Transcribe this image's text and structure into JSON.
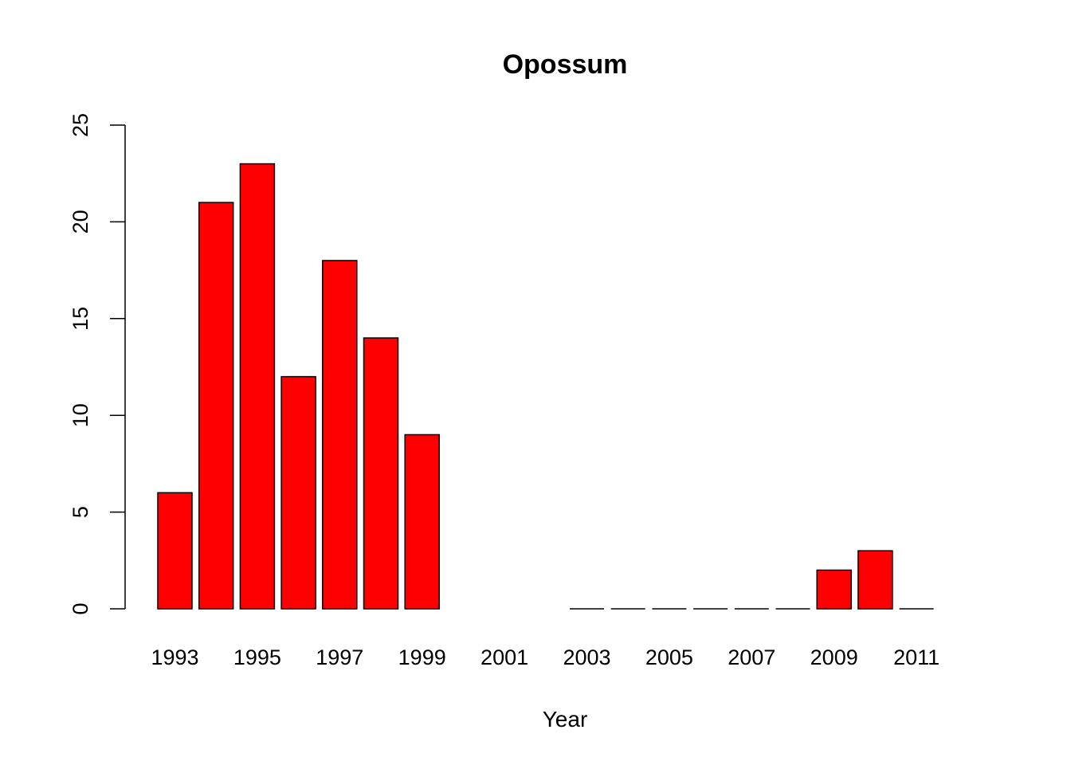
{
  "chart_data": {
    "type": "bar",
    "title": "Opossum",
    "xlabel": "Year",
    "ylabel": "",
    "ylim": [
      0,
      25
    ],
    "yticks": [
      0,
      5,
      10,
      15,
      20,
      25
    ],
    "categories": [
      "1993",
      "1994",
      "1995",
      "1996",
      "1997",
      "1998",
      "1999",
      "2000",
      "2001",
      "2002",
      "2003",
      "2004",
      "2005",
      "2006",
      "2007",
      "2008",
      "2009",
      "2010",
      "2011"
    ],
    "x_tick_labels": [
      "1993",
      "",
      "1995",
      "",
      "1997",
      "",
      "1999",
      "",
      "2001",
      "",
      "2003",
      "",
      "2005",
      "",
      "2007",
      "",
      "2009",
      "",
      "2011"
    ],
    "values": [
      6,
      21,
      23,
      12,
      18,
      14,
      9,
      null,
      null,
      null,
      0,
      0,
      0,
      0,
      0,
      0,
      2,
      3,
      0
    ],
    "bar_color": "#ff0000",
    "grid": false,
    "legend": "none"
  }
}
